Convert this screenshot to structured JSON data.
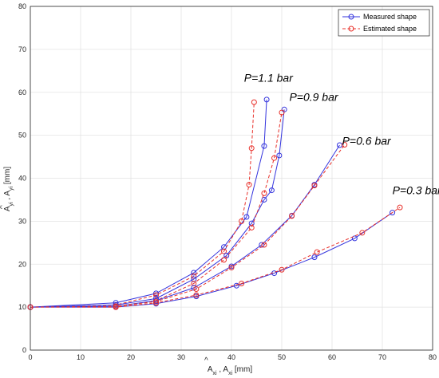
{
  "chart_data": {
    "type": "line",
    "xlabel": "Â_xi , A_xi [mm]",
    "ylabel": "Â_yi , A_yi [mm]",
    "xlim": [
      0,
      80
    ],
    "ylim": [
      0,
      80
    ],
    "xticks": [
      "0",
      "10",
      "20",
      "30",
      "40",
      "50",
      "60",
      "70",
      "80"
    ],
    "yticks": [
      "0",
      "10",
      "20",
      "30",
      "40",
      "50",
      "60",
      "70",
      "80"
    ],
    "grid": true,
    "legend_position": "top-right",
    "legend": [
      {
        "label": "Measured shape",
        "color": "#3333dd",
        "marker": "circle",
        "linestyle": "solid"
      },
      {
        "label": "Estimated shape",
        "color": "#e8302a",
        "marker": "circle",
        "linestyle": "dashed"
      }
    ],
    "annotations": [
      {
        "text": "P=1.1 bar",
        "x": 42.5,
        "y": 62.5
      },
      {
        "text": "P=0.9 bar",
        "x": 51.5,
        "y": 58.0
      },
      {
        "text": "P=0.6 bar",
        "x": 62.0,
        "y": 47.8
      },
      {
        "text": "P=0.3 bar",
        "x": 72.0,
        "y": 36.3
      }
    ],
    "series": [
      {
        "group": "P=1.1 bar",
        "kind": "measured",
        "x": [
          0,
          17,
          25,
          32.5,
          38.5,
          43,
          46.5,
          47
        ],
        "y": [
          10,
          11,
          13.2,
          18,
          24,
          31,
          47.5,
          58.3
        ]
      },
      {
        "group": "P=1.1 bar",
        "kind": "estimated",
        "x": [
          0,
          17,
          25,
          32.5,
          38.5,
          42,
          43.5,
          44,
          44.5
        ],
        "y": [
          10,
          10.5,
          12.8,
          17.2,
          23,
          30,
          38.5,
          47,
          57.7
        ]
      },
      {
        "group": "P=0.9 bar",
        "kind": "measured",
        "x": [
          0,
          17,
          25,
          32.5,
          39,
          44,
          46.5,
          48,
          49.5,
          50.5
        ],
        "y": [
          10,
          10.5,
          12,
          16.5,
          22,
          29.5,
          35,
          37.2,
          45.3,
          56
        ]
      },
      {
        "group": "P=0.9 bar",
        "kind": "estimated",
        "x": [
          0,
          17,
          25,
          32.5,
          38.5,
          44,
          46.5,
          48.5,
          50
        ],
        "y": [
          10,
          10.2,
          11.5,
          15.5,
          21,
          28.5,
          36.5,
          44.7,
          55.3
        ]
      },
      {
        "group": "P=0.6 bar",
        "kind": "measured",
        "x": [
          0,
          17,
          25,
          32.5,
          40,
          46,
          52,
          56.5,
          61.5
        ],
        "y": [
          10,
          10.2,
          11.5,
          14.5,
          19.5,
          24.5,
          31.3,
          38.5,
          47.7
        ]
      },
      {
        "group": "P=0.6 bar",
        "kind": "estimated",
        "x": [
          0,
          17,
          25,
          33,
          40,
          46.5,
          52,
          56.5,
          62.5
        ],
        "y": [
          10,
          10.2,
          11.3,
          14.2,
          19.2,
          24.5,
          31.2,
          38.3,
          47.8
        ]
      },
      {
        "group": "P=0.3 bar",
        "kind": "measured",
        "x": [
          0,
          17,
          25,
          33,
          41,
          48.5,
          56.5,
          64.5,
          72
        ],
        "y": [
          10,
          10,
          10.8,
          12.5,
          15,
          17.9,
          21.6,
          26,
          32
        ]
      },
      {
        "group": "P=0.3 bar",
        "kind": "estimated",
        "x": [
          0,
          17,
          25,
          33,
          42,
          50,
          57,
          66,
          73.5
        ],
        "y": [
          10,
          10,
          11,
          12.8,
          15.5,
          18.7,
          22.8,
          27.3,
          33.2
        ]
      }
    ]
  }
}
